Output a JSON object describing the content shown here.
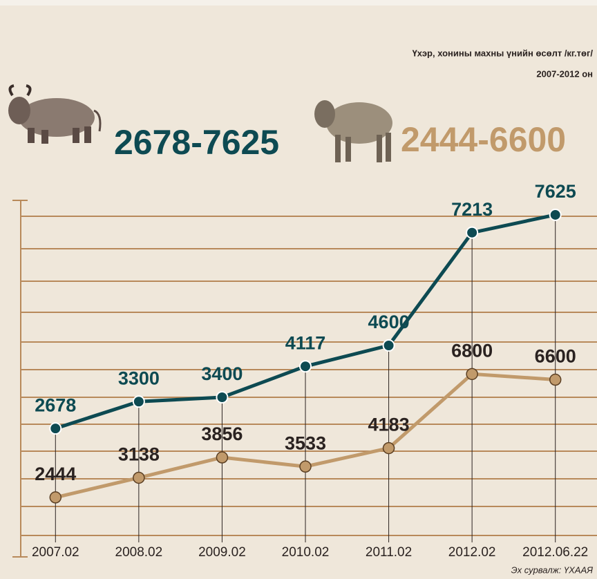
{
  "chart_data": {
    "type": "line",
    "title": "Үхэр, хонины махны үнийн өсөлт /кг.төг/",
    "subtitle": "2007-2012 он",
    "annotations": [
      "2678-7625",
      "2444-6600"
    ],
    "source": "Эх сурвалж: ҮХААЯ",
    "categories": [
      "2007.02",
      "2008.02",
      "2009.02",
      "2010.02",
      "2011.02",
      "2012.02",
      "2012.06.22"
    ],
    "series": [
      {
        "color": "#0d4a52",
        "values": [
          2678,
          3300,
          3400,
          4117,
          4600,
          7213,
          7625
        ]
      },
      {
        "color": "#c19a6b",
        "axis": "y2",
        "values": [
          2444,
          3138,
          3856,
          3533,
          4183,
          6800,
          6600
        ]
      }
    ],
    "ylim": [
      200,
      7960
    ],
    "y2lim": [
      1100,
      12930
    ]
  }
}
